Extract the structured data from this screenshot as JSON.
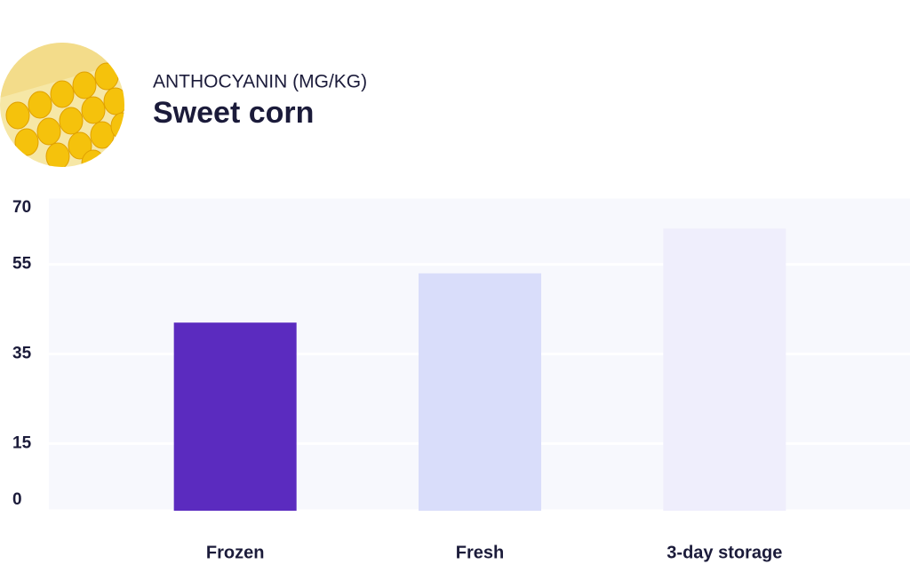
{
  "chart_data": {
    "type": "bar",
    "subtitle": "ANTHOCYANIN (MG/KG)",
    "title": "Sweet corn",
    "categories": [
      "Frozen",
      "Fresh",
      "3-day storage"
    ],
    "values": [
      42,
      53,
      63
    ],
    "colors": [
      "#5b2bbf",
      "#d9ddfa",
      "#efeefc"
    ],
    "ylim": [
      0,
      70
    ],
    "yticks": [
      0,
      15,
      35,
      55,
      70
    ],
    "grid": true
  }
}
